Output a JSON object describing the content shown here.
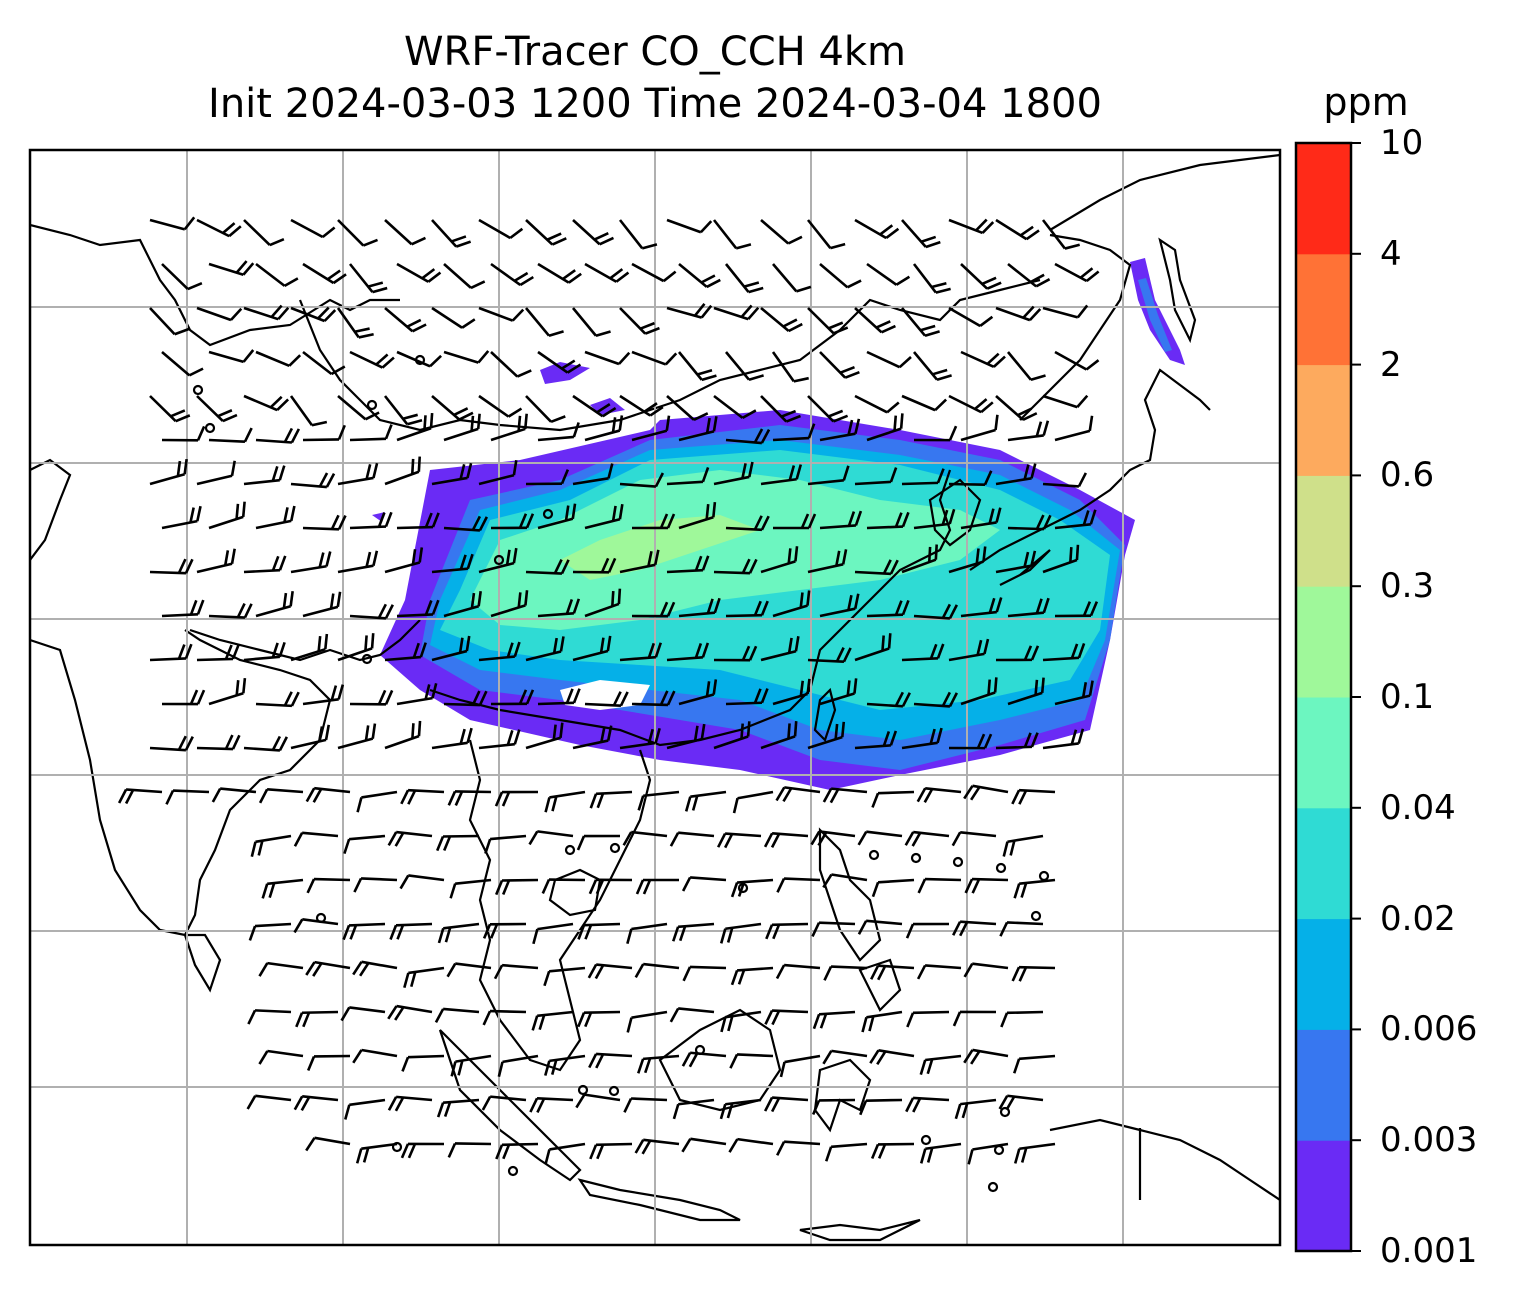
{
  "figure": {
    "title_line1": "WRF-Tracer CO_CCH 4km",
    "title_line2": "Init 2024-03-03 1200 Time 2024-03-04 1800"
  },
  "colorbar": {
    "unit": "ppm",
    "ticks": [
      "0.001",
      "0.003",
      "0.006",
      "0.02",
      "0.04",
      "0.1",
      "0.3",
      "0.6",
      "2",
      "4",
      "10"
    ],
    "colors": [
      "#6a2bf5",
      "#3777f0",
      "#05b0e8",
      "#2fdbd4",
      "#6cf6c0",
      "#9ff89a",
      "#cfe08a",
      "#fdaa5e",
      "#ff7236",
      "#ff2a18"
    ]
  },
  "map": {
    "gridlines": true,
    "coastline_color": "#000000",
    "grid_color": "#b0b0b0",
    "wind_barbs": true
  }
}
